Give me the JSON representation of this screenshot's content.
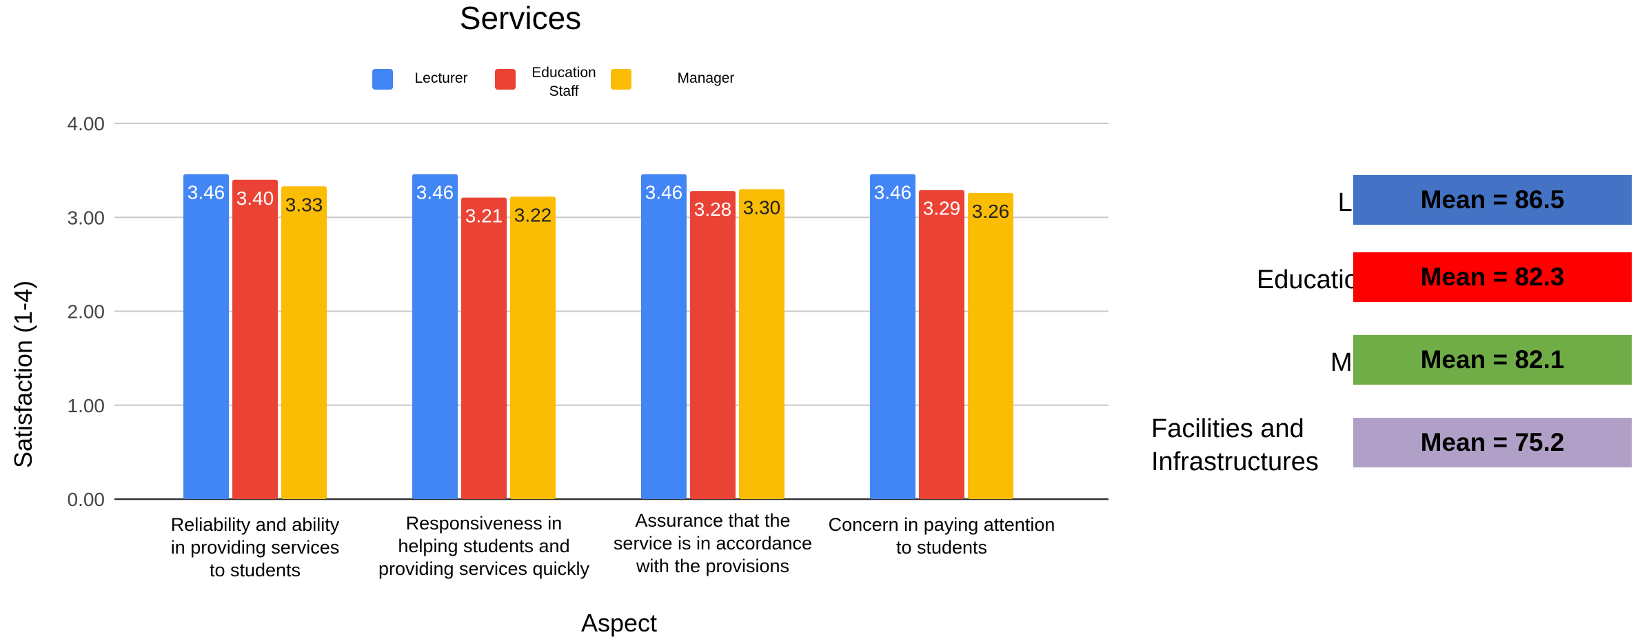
{
  "chart_data": {
    "type": "bar",
    "title": "Services",
    "xlabel": "Aspect",
    "ylabel": "Satisfaction (1-4)",
    "ylim": [
      0,
      4
    ],
    "yticks": [
      "0.00",
      "1.00",
      "2.00",
      "3.00",
      "4.00"
    ],
    "grid": true,
    "legend_position": "top",
    "categories": [
      [
        "Reliability and ability",
        "in providing services",
        "to students"
      ],
      [
        "Responsiveness in",
        "helping students and",
        "providing services quickly"
      ],
      [
        "Assurance that the",
        "service is in accordance",
        "with the provisions"
      ],
      [
        "Concern in paying attention",
        "to students"
      ]
    ],
    "series": [
      {
        "name": [
          "Lecturer"
        ],
        "color": "#4285f4",
        "label_color": "#ffffff",
        "values": [
          3.46,
          3.46,
          3.46,
          3.46
        ],
        "labels": [
          "3.46",
          "3.46",
          "3.46",
          "3.46"
        ]
      },
      {
        "name": [
          "Education",
          "Staff"
        ],
        "color": "#ea4335",
        "label_color": "#ffffff",
        "values": [
          3.4,
          3.21,
          3.28,
          3.29
        ],
        "labels": [
          "3.40",
          "3.21",
          "3.28",
          "3.29"
        ]
      },
      {
        "name": [
          "Manager"
        ],
        "color": "#fbbc04",
        "label_color": "#222222",
        "values": [
          3.33,
          3.22,
          3.3,
          3.26
        ],
        "labels": [
          "3.33",
          "3.22",
          "3.30",
          "3.26"
        ]
      }
    ]
  },
  "means": [
    {
      "label": [
        "Lecturer"
      ],
      "value": "Mean = 86.5",
      "color": "#4472c4"
    },
    {
      "label": [
        "Education Staff"
      ],
      "value": "Mean = 82.3",
      "color": "#ff0000"
    },
    {
      "label": [
        "Manager"
      ],
      "value": "Mean = 82.1",
      "color": "#70ad47"
    },
    {
      "label": [
        "Facilities and",
        "Infrastructures"
      ],
      "value": "Mean = 75.2",
      "color": "#b0a0c8"
    }
  ]
}
